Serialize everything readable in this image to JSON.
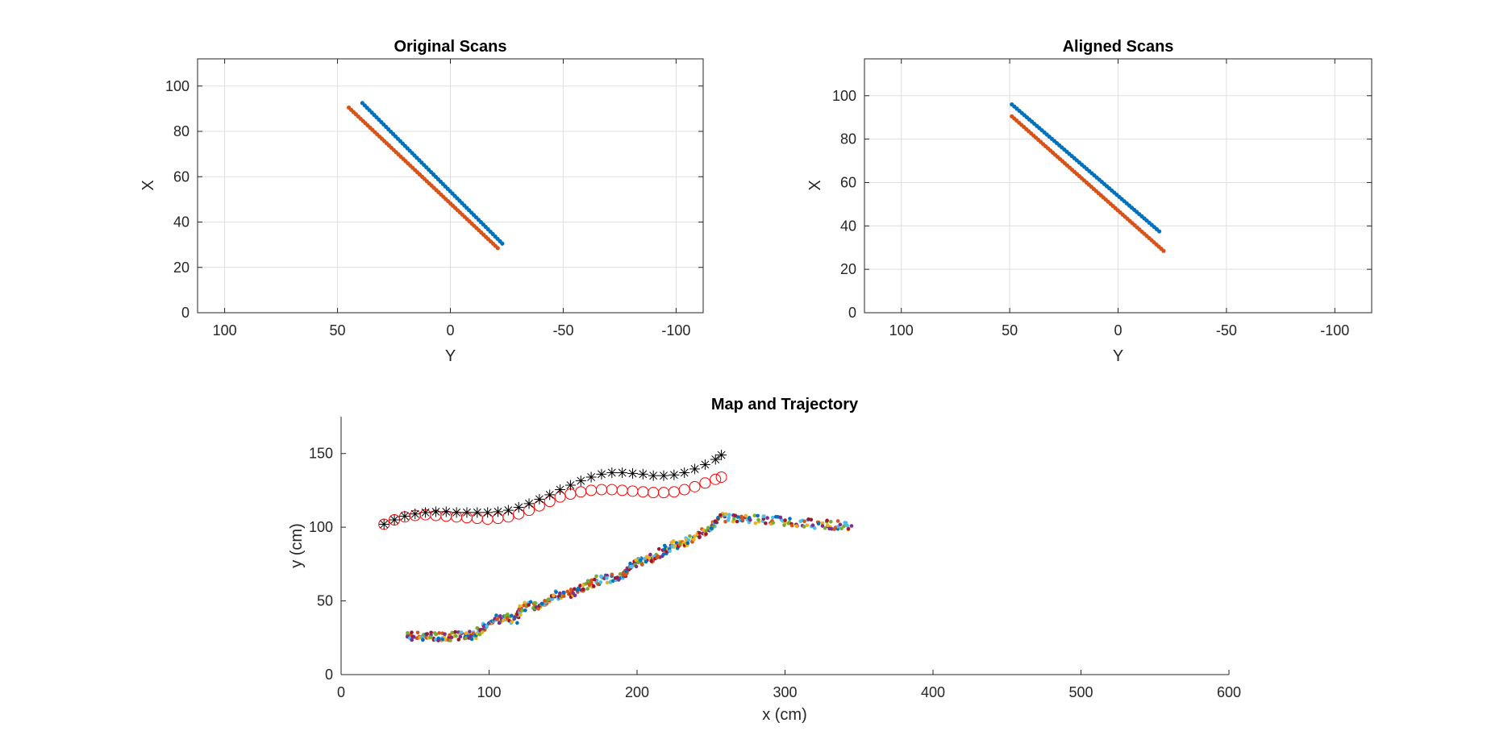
{
  "figure": {
    "background": "#ffffff"
  },
  "chart_data": [
    {
      "type": "scatter",
      "title": "Original Scans",
      "xlabel": "Y",
      "ylabel": "X",
      "xlim": [
        112,
        -112
      ],
      "ylim": [
        0,
        112
      ],
      "x_direction": "reversed",
      "xticks": [
        100,
        50,
        0,
        -50,
        -100
      ],
      "xtick_labels": [
        "100",
        "50",
        "0",
        "-50",
        "-100"
      ],
      "yticks": [
        0,
        20,
        40,
        60,
        80,
        100
      ],
      "ytick_labels": [
        "0",
        "20",
        "40",
        "60",
        "80",
        "100"
      ],
      "grid": true,
      "box": true,
      "series": [
        {
          "color": "#0072BD",
          "marker": "dot",
          "start": [
            39,
            92.5
          ],
          "end": [
            -23,
            30.5
          ],
          "count": 60
        },
        {
          "color": "#D95319",
          "marker": "dot",
          "start": [
            45,
            90.5
          ],
          "end": [
            -21,
            28.5
          ],
          "count": 64
        }
      ]
    },
    {
      "type": "scatter",
      "title": "Aligned Scans",
      "xlabel": "Y",
      "ylabel": "X",
      "xlim": [
        117,
        -117
      ],
      "ylim": [
        0,
        117
      ],
      "x_direction": "reversed",
      "xticks": [
        100,
        50,
        0,
        -50,
        -100
      ],
      "xtick_labels": [
        "100",
        "50",
        "0",
        "-50",
        "-100"
      ],
      "yticks": [
        0,
        20,
        40,
        60,
        80,
        100
      ],
      "ytick_labels": [
        "0",
        "20",
        "40",
        "60",
        "80",
        "100"
      ],
      "grid": true,
      "box": true,
      "series": [
        {
          "color": "#0072BD",
          "marker": "dot",
          "start": [
            49,
            96
          ],
          "end": [
            -19,
            37.5
          ],
          "count": 60
        },
        {
          "color": "#D95319",
          "marker": "dot",
          "start": [
            49,
            90.5
          ],
          "end": [
            -21,
            28.5
          ],
          "count": 64
        }
      ]
    },
    {
      "type": "scatter",
      "title": "Map and Trajectory",
      "xlabel": "x (cm)",
      "ylabel": "y (cm)",
      "xlim": [
        0,
        600
      ],
      "ylim": [
        0,
        175
      ],
      "xticks": [
        0,
        100,
        200,
        300,
        400,
        500,
        600
      ],
      "xtick_labels": [
        "0",
        "100",
        "200",
        "300",
        "400",
        "500",
        "600"
      ],
      "yticks": [
        0,
        50,
        100,
        150
      ],
      "ytick_labels": [
        "0",
        "50",
        "100",
        "150"
      ],
      "grid": false,
      "box": false,
      "trajectory": {
        "name": "",
        "color": "#000000",
        "marker": "asterisk",
        "x": [
          29,
          36,
          43,
          50,
          57,
          64,
          71,
          78,
          85,
          92,
          99,
          106,
          113,
          120,
          127,
          134,
          141,
          148,
          155,
          162,
          169,
          176,
          183,
          190,
          197,
          204,
          211,
          218,
          225,
          232,
          239,
          246,
          253,
          257
        ],
        "y": [
          102,
          105,
          107.5,
          109,
          110,
          110.5,
          110.5,
          110,
          110,
          110,
          110,
          110.5,
          111.5,
          113.5,
          116,
          119,
          122,
          125.5,
          128.5,
          131.5,
          134,
          136,
          137,
          137,
          136.5,
          136,
          135,
          135,
          135.5,
          137,
          139.5,
          142.5,
          146,
          149
        ]
      },
      "estimate": {
        "name": "",
        "color": "#FF0000",
        "marker": "circle",
        "x": [
          29,
          36,
          43,
          50,
          57,
          64,
          71,
          78,
          85,
          92,
          99,
          106,
          113,
          120,
          127,
          134,
          141,
          148,
          155,
          162,
          169,
          176,
          183,
          190,
          197,
          204,
          211,
          218,
          225,
          232,
          239,
          246,
          253,
          257
        ],
        "y": [
          102,
          105,
          107,
          108,
          108.5,
          108,
          107.5,
          107,
          106.5,
          106,
          105.5,
          106,
          107,
          109,
          111.5,
          114.5,
          117.5,
          120.5,
          122.5,
          124,
          125,
          125.5,
          125.5,
          125,
          124.5,
          124,
          123.5,
          123.5,
          124,
          125.5,
          127.5,
          130,
          132.5,
          134
        ]
      },
      "map_stairs": {
        "name": "",
        "colors": [
          "#0072BD",
          "#D95319",
          "#EDB120",
          "#7E2F8E",
          "#77AC30",
          "#4DBEEE",
          "#A2142F"
        ],
        "points": [
          [
            45,
            26
          ],
          [
            60,
            26
          ],
          [
            75,
            26
          ],
          [
            90,
            27
          ],
          [
            97,
            32
          ],
          [
            105,
            38
          ],
          [
            118,
            38
          ],
          [
            122,
            46
          ],
          [
            135,
            47
          ],
          [
            145,
            54
          ],
          [
            160,
            56
          ],
          [
            172,
            64
          ],
          [
            190,
            66
          ],
          [
            197,
            75
          ],
          [
            208,
            78
          ],
          [
            221,
            86
          ],
          [
            233,
            90
          ],
          [
            248,
            98
          ],
          [
            256,
            107
          ],
          [
            275,
            106
          ],
          [
            300,
            104
          ],
          [
            325,
            102
          ],
          [
            345,
            101
          ]
        ]
      }
    }
  ]
}
